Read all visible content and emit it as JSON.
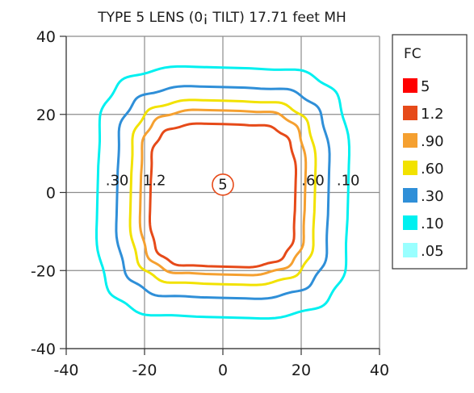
{
  "chart_data": {
    "type": "contour",
    "title": "TYPE 5 LENS (0¡ TILT) 17.71 feet MH",
    "xlim": [
      -40,
      40
    ],
    "ylim": [
      -40,
      40
    ],
    "xticks": [
      "-40",
      "-20",
      "0",
      "20",
      "40"
    ],
    "yticks": [
      "40",
      "20",
      "0",
      "-20",
      "-40"
    ],
    "xtick_values": [
      -40,
      -20,
      0,
      20,
      40
    ],
    "ytick_values": [
      40,
      20,
      0,
      -20,
      -40
    ],
    "grid": true,
    "legend_title": "FC",
    "legend": [
      {
        "label": "5",
        "color": "#ff0000"
      },
      {
        "label": "1.2",
        "color": "#e64a19"
      },
      {
        "label": ".90",
        "color": "#f5a030"
      },
      {
        "label": ".60",
        "color": "#f2e200"
      },
      {
        "label": ".30",
        "color": "#2f8fd8"
      },
      {
        "label": ".10",
        "color": "#00f0f0"
      },
      {
        "label": ".05",
        "color": "#99ffff"
      }
    ],
    "contours": [
      {
        "level": ".10",
        "color": "#00f0f0",
        "x_extent": [
          -32,
          32
        ],
        "y_extent": [
          -32,
          32
        ]
      },
      {
        "level": ".30",
        "color": "#2f8fd8",
        "x_extent": [
          -27,
          27
        ],
        "y_extent": [
          -27,
          27
        ]
      },
      {
        "level": ".60",
        "color": "#f2e200",
        "x_extent": [
          -23.5,
          23.5
        ],
        "y_extent": [
          -23.5,
          23.5
        ]
      },
      {
        "level": ".90",
        "color": "#f5a030",
        "x_extent": [
          -21,
          21
        ],
        "y_extent": [
          -21,
          21
        ]
      },
      {
        "level": "1.2",
        "color": "#e64a19",
        "x_extent": [
          -18.5,
          18.5
        ],
        "y_extent": [
          -19,
          17.5
        ]
      }
    ],
    "annotations": [
      {
        "text": ".30",
        "x": -27,
        "y": 2.5
      },
      {
        "text": "1.2",
        "x": -17.5,
        "y": 2.5
      },
      {
        "text": ".60",
        "x": 23,
        "y": 2.5
      },
      {
        "text": ".10",
        "x": 32,
        "y": 2.5
      }
    ],
    "center_marker": {
      "text": "5",
      "x": 0,
      "y": 2
    }
  }
}
